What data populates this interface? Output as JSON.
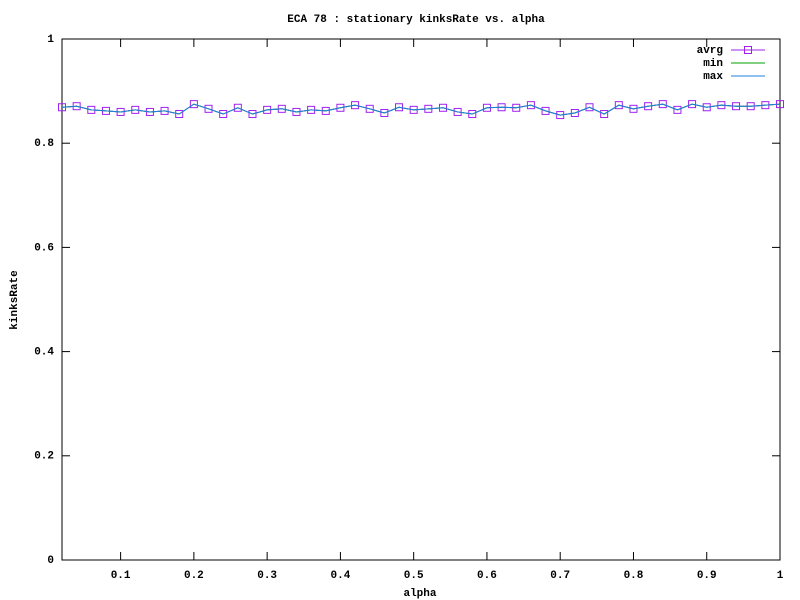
{
  "chart_data": {
    "type": "line",
    "title": "ECA 78 : stationary kinksRate vs. alpha",
    "x_label": "alpha",
    "y_label": "kinksRate",
    "x": [
      0.02,
      0.04,
      0.06,
      0.08,
      0.1,
      0.12,
      0.14,
      0.16,
      0.18,
      0.2,
      0.22,
      0.24,
      0.26,
      0.28,
      0.3,
      0.32,
      0.34,
      0.36,
      0.38,
      0.4,
      0.42,
      0.44,
      0.46,
      0.48,
      0.5,
      0.52,
      0.54,
      0.56,
      0.58,
      0.6,
      0.62,
      0.64,
      0.66,
      0.68,
      0.7,
      0.72,
      0.74,
      0.76,
      0.78,
      0.8,
      0.82,
      0.84,
      0.86,
      0.88,
      0.9,
      0.92,
      0.94,
      0.96,
      0.98,
      1
    ],
    "series": [
      {
        "name": "avrg",
        "color": "#a020f0",
        "marker": "square",
        "values": [
          0.869,
          0.871,
          0.864,
          0.862,
          0.86,
          0.864,
          0.86,
          0.862,
          0.856,
          0.875,
          0.866,
          0.856,
          0.868,
          0.856,
          0.864,
          0.866,
          0.86,
          0.864,
          0.862,
          0.868,
          0.873,
          0.866,
          0.858,
          0.869,
          0.864,
          0.866,
          0.868,
          0.86,
          0.856,
          0.868,
          0.869,
          0.868,
          0.873,
          0.862,
          0.854,
          0.858,
          0.869,
          0.856,
          0.873,
          0.866,
          0.871,
          0.875,
          0.864,
          0.875,
          0.869,
          0.873,
          0.871,
          0.871,
          0.873,
          0.875
        ]
      },
      {
        "name": "min",
        "color": "#00a000",
        "values": [
          0.869,
          0.871,
          0.864,
          0.862,
          0.86,
          0.864,
          0.86,
          0.862,
          0.856,
          0.875,
          0.866,
          0.856,
          0.868,
          0.856,
          0.864,
          0.866,
          0.86,
          0.864,
          0.862,
          0.868,
          0.873,
          0.866,
          0.858,
          0.869,
          0.864,
          0.866,
          0.868,
          0.86,
          0.856,
          0.868,
          0.869,
          0.868,
          0.873,
          0.862,
          0.854,
          0.858,
          0.869,
          0.856,
          0.873,
          0.866,
          0.871,
          0.875,
          0.864,
          0.875,
          0.869,
          0.873,
          0.871,
          0.871,
          0.873,
          0.875
        ]
      },
      {
        "name": "max",
        "color": "#2080e0",
        "values": [
          0.869,
          0.871,
          0.864,
          0.862,
          0.86,
          0.864,
          0.86,
          0.862,
          0.856,
          0.875,
          0.866,
          0.856,
          0.868,
          0.856,
          0.864,
          0.866,
          0.86,
          0.864,
          0.862,
          0.868,
          0.873,
          0.866,
          0.858,
          0.869,
          0.864,
          0.866,
          0.868,
          0.86,
          0.856,
          0.868,
          0.869,
          0.868,
          0.873,
          0.862,
          0.854,
          0.858,
          0.869,
          0.856,
          0.873,
          0.866,
          0.871,
          0.875,
          0.864,
          0.875,
          0.869,
          0.873,
          0.871,
          0.871,
          0.873,
          0.875
        ]
      }
    ],
    "xlim": [
      0.02,
      1
    ],
    "ylim": [
      0,
      1
    ],
    "xticks": [
      0.1,
      0.2,
      0.3,
      0.4,
      0.5,
      0.6,
      0.7,
      0.8,
      0.9,
      1
    ],
    "yticks": [
      0,
      0.2,
      0.4,
      0.6,
      0.8,
      1
    ],
    "legend": "top-right"
  }
}
